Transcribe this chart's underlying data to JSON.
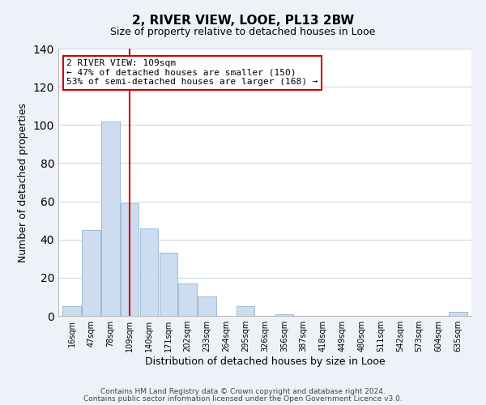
{
  "title": "2, RIVER VIEW, LOOE, PL13 2BW",
  "subtitle": "Size of property relative to detached houses in Looe",
  "xlabel": "Distribution of detached houses by size in Looe",
  "ylabel": "Number of detached properties",
  "bar_color": "#cddcee",
  "bar_edge_color": "#9bbbd8",
  "categories": [
    "16sqm",
    "47sqm",
    "78sqm",
    "109sqm",
    "140sqm",
    "171sqm",
    "202sqm",
    "233sqm",
    "264sqm",
    "295sqm",
    "326sqm",
    "356sqm",
    "387sqm",
    "418sqm",
    "449sqm",
    "480sqm",
    "511sqm",
    "542sqm",
    "573sqm",
    "604sqm",
    "635sqm"
  ],
  "values": [
    5,
    45,
    102,
    59,
    46,
    33,
    17,
    10,
    0,
    5,
    0,
    1,
    0,
    0,
    0,
    0,
    0,
    0,
    0,
    0,
    2
  ],
  "ylim": [
    0,
    140
  ],
  "yticks": [
    0,
    20,
    40,
    60,
    80,
    100,
    120,
    140
  ],
  "vline_color": "#cc0000",
  "annotation_line1": "2 RIVER VIEW: 109sqm",
  "annotation_line2": "← 47% of detached houses are smaller (150)",
  "annotation_line3": "53% of semi-detached houses are larger (168) →",
  "annotation_bbox_color": "#ffffff",
  "annotation_bbox_edge": "#cc0000",
  "footnote1": "Contains HM Land Registry data © Crown copyright and database right 2024.",
  "footnote2": "Contains public sector information licensed under the Open Government Licence v3.0.",
  "background_color": "#eef2f8",
  "plot_bg_color": "#ffffff",
  "grid_color": "#d0d8e8"
}
